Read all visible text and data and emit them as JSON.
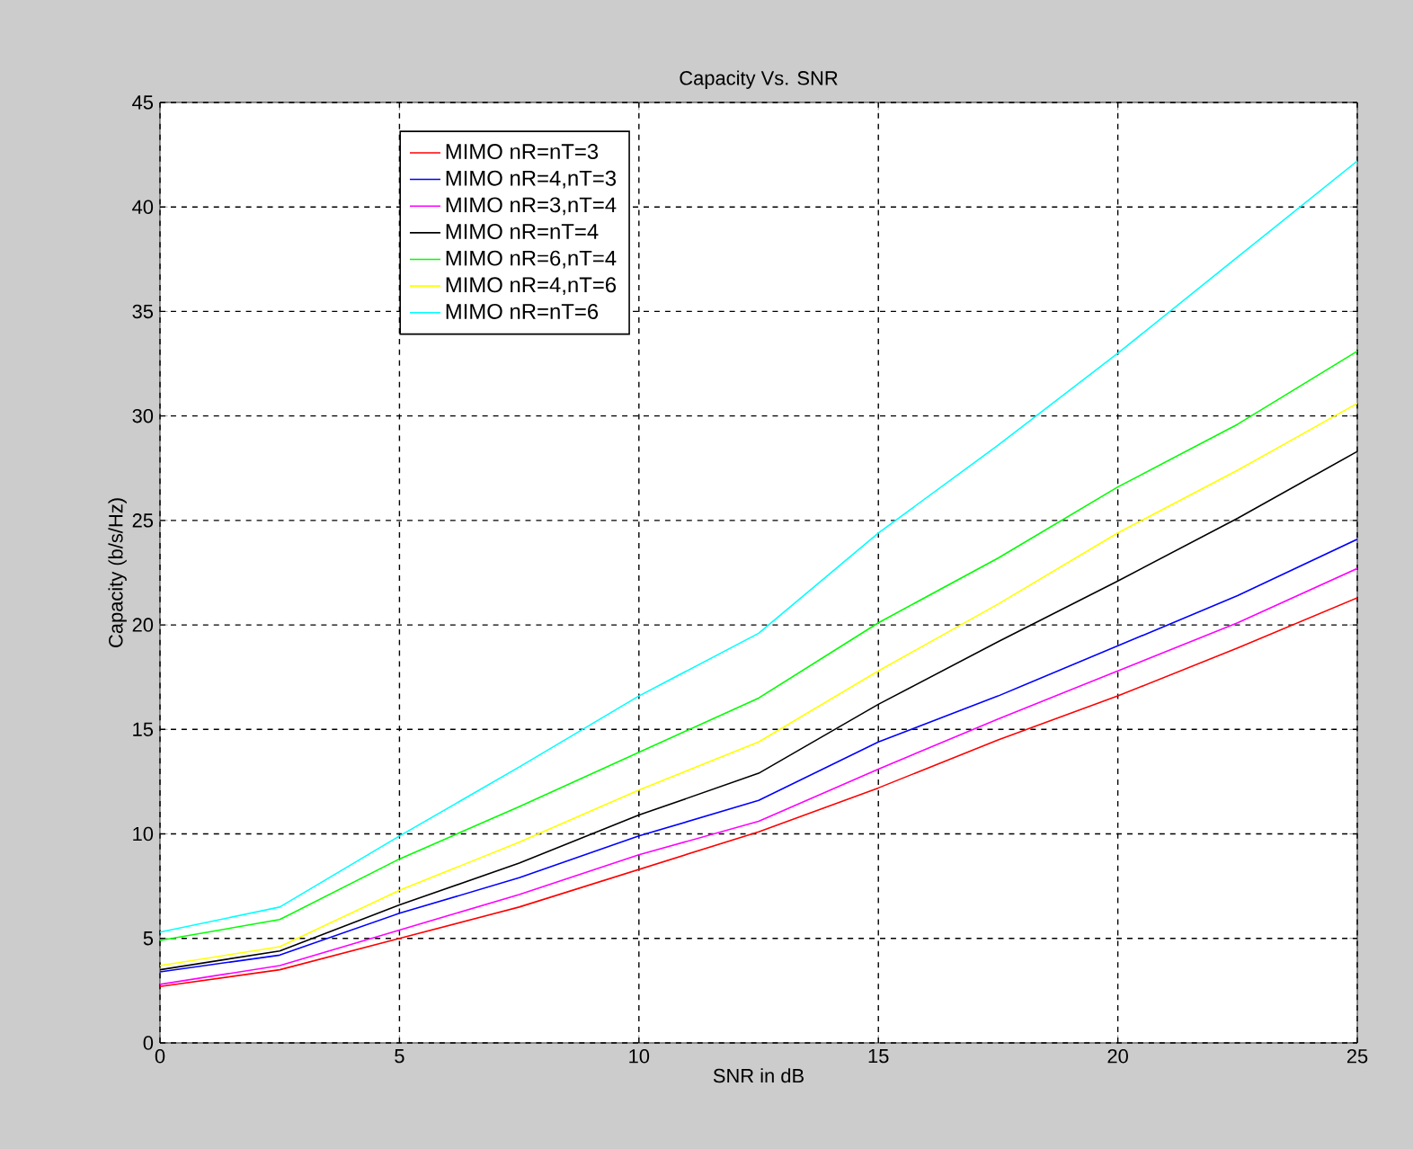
{
  "chart_data": {
    "type": "line",
    "title": "Capacity Vs. SNR",
    "xlabel": "SNR in dB",
    "ylabel": "Capacity (b/s/Hz)",
    "x": [
      0,
      2.5,
      5,
      7.5,
      10,
      12.5,
      15,
      17.5,
      20,
      22.5,
      25
    ],
    "series": [
      {
        "name": "MIMO nR=nT=3",
        "color": "#ff0000",
        "values": [
          2.7,
          3.5,
          5.0,
          6.5,
          8.3,
          10.1,
          12.2,
          14.5,
          16.6,
          18.9,
          21.3
        ]
      },
      {
        "name": "MIMO nR=4,nT=3",
        "color": "#0000ff",
        "values": [
          3.4,
          4.2,
          6.2,
          7.9,
          9.9,
          11.6,
          14.4,
          16.6,
          19.0,
          21.4,
          24.1
        ]
      },
      {
        "name": "MIMO nR=3,nT=4",
        "color": "#ff00ff",
        "values": [
          2.8,
          3.7,
          5.4,
          7.1,
          9.0,
          10.6,
          13.1,
          15.5,
          17.8,
          20.1,
          22.7
        ]
      },
      {
        "name": "MIMO nR=nT=4",
        "color": "#000000",
        "values": [
          3.5,
          4.4,
          6.6,
          8.6,
          10.9,
          12.9,
          16.2,
          19.2,
          22.1,
          25.1,
          28.3
        ]
      },
      {
        "name": "MIMO nR=6,nT=4",
        "color": "#00ff00",
        "values": [
          4.9,
          5.9,
          8.8,
          11.3,
          13.9,
          16.5,
          20.1,
          23.2,
          26.6,
          29.6,
          33.1
        ]
      },
      {
        "name": "MIMO nR=4,nT=6",
        "color": "#ffff00",
        "values": [
          3.7,
          4.6,
          7.3,
          9.6,
          12.1,
          14.4,
          17.8,
          21.0,
          24.4,
          27.4,
          30.6
        ]
      },
      {
        "name": "MIMO nR=nT=6",
        "color": "#00ffff",
        "values": [
          5.3,
          6.5,
          9.9,
          13.2,
          16.6,
          19.6,
          24.4,
          28.6,
          33.0,
          37.6,
          42.2
        ]
      }
    ],
    "xlim": [
      0,
      25
    ],
    "ylim": [
      0,
      45
    ],
    "xticks": [
      0,
      5,
      10,
      15,
      20,
      25
    ],
    "yticks": [
      0,
      5,
      10,
      15,
      20,
      25,
      30,
      35,
      40,
      45
    ],
    "grid": true,
    "legend": "top left",
    "marker": "none",
    "line_style": "solid"
  }
}
